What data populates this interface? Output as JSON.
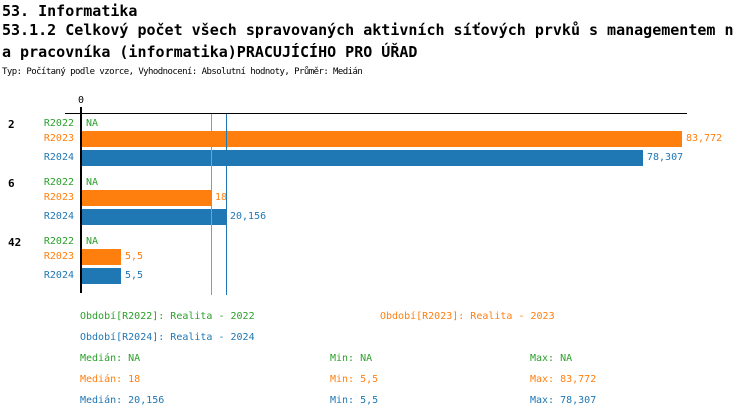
{
  "header": {
    "line1": "53. Informatika",
    "line2": "53.1.2 Celkový počet všech spravovaných aktivních síťových prvků s managementem n",
    "line3": "a pracovníka (informatika)PRACUJÍCÍHO PRO ÚŘAD",
    "meta": "Typ: Počítaný podle vzorce, Vyhodnocení: Absolutní hodnoty, Průměr: Medián"
  },
  "colors": {
    "r2022_green": "#2CA02C",
    "r2023_orange": "#FF7F0E",
    "r2024_blue": "#1F77B4",
    "axis_black": "#000000"
  },
  "chart_data": {
    "type": "bar",
    "orientation": "horizontal",
    "number_format": "czech-decimal-comma",
    "x_axis": {
      "tick_label": "0",
      "min": 0,
      "max_value": 83.772,
      "grid": false
    },
    "series_names": [
      "R2022",
      "R2023",
      "R2024"
    ],
    "groups": [
      {
        "label": "2",
        "rows": [
          {
            "series": "R2022",
            "value": null,
            "display": "NA"
          },
          {
            "series": "R2023",
            "value": 83.772,
            "display": "83,772"
          },
          {
            "series": "R2024",
            "value": 78.307,
            "display": "78,307"
          }
        ]
      },
      {
        "label": "6",
        "rows": [
          {
            "series": "R2022",
            "value": null,
            "display": "NA"
          },
          {
            "series": "R2023",
            "value": 18,
            "display": "18"
          },
          {
            "series": "R2024",
            "value": 20.156,
            "display": "20,156"
          }
        ]
      },
      {
        "label": "42",
        "rows": [
          {
            "series": "R2022",
            "value": null,
            "display": "NA"
          },
          {
            "series": "R2023",
            "value": 5.5,
            "display": "5,5"
          },
          {
            "series": "R2024",
            "value": 5.5,
            "display": "5,5"
          }
        ]
      }
    ],
    "median_lines": [
      {
        "series": "R2023",
        "value": 18
      },
      {
        "series": "R2024",
        "value": 20.156
      }
    ],
    "legend": [
      {
        "series": "R2022",
        "text": "Období[R2022]: Realita - 2022"
      },
      {
        "series": "R2023",
        "text": "Období[R2023]: Realita - 2023"
      },
      {
        "series": "R2024",
        "text": "Období[R2024]: Realita - 2024"
      }
    ],
    "stats": [
      {
        "series": "R2022",
        "median": "Medián: NA",
        "min": "Min: NA",
        "max": "Max: NA"
      },
      {
        "series": "R2023",
        "median": "Medián: 18",
        "min": "Min: 5,5",
        "max": "Max: 83,772"
      },
      {
        "series": "R2024",
        "median": "Medián: 20,156",
        "min": "Min: 5,5",
        "max": "Max: 78,307"
      }
    ]
  }
}
